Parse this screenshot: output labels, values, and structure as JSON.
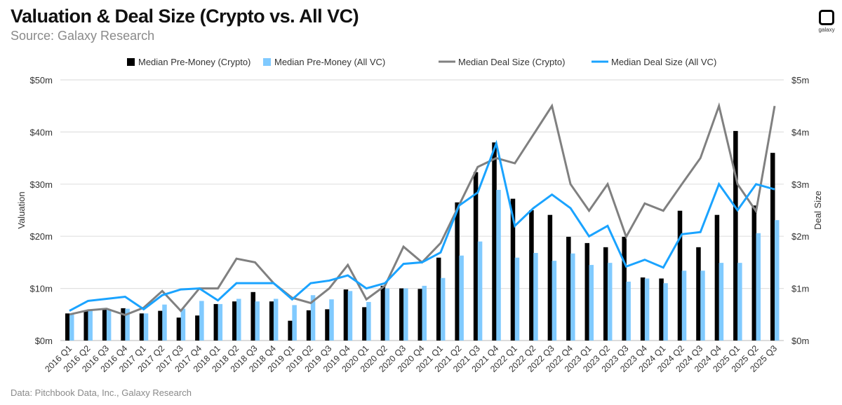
{
  "header": {
    "title": "Valuation & Deal Size (Crypto vs. All VC)",
    "subtitle": "Source: Galaxy Research",
    "logo_text": "galaxy"
  },
  "footer": {
    "text": "Data: Pitchbook Data, Inc., Galaxy Research"
  },
  "chart_data": {
    "type": "bar+line",
    "title": "Valuation & Deal Size (Crypto vs. All VC)",
    "ylabel": "Valuation",
    "y2label": "Deal Size",
    "ylim": [
      0,
      50
    ],
    "y2lim": [
      0,
      5
    ],
    "yticks": [
      "$0m",
      "$10m",
      "$20m",
      "$30m",
      "$40m",
      "$50m"
    ],
    "y2ticks": [
      "$0m",
      "$1m",
      "$2m",
      "$3m",
      "$4m",
      "$5m"
    ],
    "grid": true,
    "legend": "top",
    "categories": [
      "2016 Q1",
      "2016 Q2",
      "2016 Q3",
      "2016 Q4",
      "2017 Q1",
      "2017 Q2",
      "2017 Q3",
      "2017 Q4",
      "2018 Q1",
      "2018 Q2",
      "2018 Q3",
      "2018 Q4",
      "2019 Q1",
      "2019 Q2",
      "2019 Q3",
      "2019 Q4",
      "2020 Q1",
      "2020 Q2",
      "2020 Q3",
      "2020 Q4",
      "2021 Q1",
      "2021 Q2",
      "2021 Q3",
      "2021 Q4",
      "2022 Q1",
      "2022 Q2",
      "2022 Q3",
      "2022 Q4",
      "2023 Q1",
      "2023 Q2",
      "2023 Q3",
      "2023 Q4",
      "2024 Q1",
      "2024 Q2",
      "2024 Q3",
      "2024 Q4",
      "2025 Q1",
      "2025 Q2",
      "2025 Q3"
    ],
    "series": [
      {
        "name": "Median Pre-Money (Crypto)",
        "type": "bar",
        "axis": "left",
        "color": "#000000",
        "values": [
          5.2,
          5.7,
          6.1,
          6.2,
          5.2,
          5.7,
          4.4,
          4.8,
          7.0,
          7.5,
          9.3,
          7.5,
          3.8,
          5.8,
          6.0,
          9.8,
          6.4,
          10.5,
          10.0,
          9.9,
          15.9,
          26.5,
          32.3,
          38.0,
          27.2,
          25.0,
          24.1,
          19.9,
          18.7,
          17.9,
          19.9,
          12.1,
          11.9,
          24.9,
          17.9,
          24.1,
          40.2,
          25.9,
          36.0
        ]
      },
      {
        "name": "Median Pre-Money (All VC)",
        "type": "bar",
        "axis": "left",
        "color": "#80CAFF",
        "values": [
          5.0,
          5.9,
          6.0,
          6.1,
          5.2,
          6.9,
          6.1,
          7.6,
          7.0,
          8.0,
          7.5,
          8.0,
          6.8,
          8.7,
          7.9,
          9.5,
          7.4,
          10.0,
          10.0,
          10.5,
          12.0,
          16.3,
          19.0,
          28.9,
          15.9,
          16.8,
          15.3,
          16.7,
          14.5,
          14.9,
          11.3,
          11.9,
          11.0,
          13.4,
          13.4,
          14.9,
          14.9,
          20.6,
          23.1
        ]
      },
      {
        "name": "Median Deal Size (Crypto)",
        "type": "line",
        "axis": "right",
        "color": "#808080",
        "values": [
          0.5,
          0.58,
          0.61,
          0.49,
          0.63,
          0.95,
          0.57,
          1.0,
          1.0,
          1.57,
          1.5,
          1.1,
          0.82,
          0.72,
          1.0,
          1.45,
          0.79,
          1.05,
          1.8,
          1.5,
          1.87,
          2.6,
          3.33,
          3.5,
          3.4,
          3.95,
          4.5,
          3.0,
          2.49,
          3.0,
          1.99,
          2.63,
          2.49,
          3.0,
          3.5,
          4.5,
          3.0,
          2.48,
          4.5
        ]
      },
      {
        "name": "Median Deal Size (All VC)",
        "type": "line",
        "axis": "right",
        "color": "#1AA3FF",
        "values": [
          0.57,
          0.76,
          0.8,
          0.84,
          0.6,
          0.87,
          0.98,
          1.0,
          0.77,
          1.1,
          1.1,
          1.1,
          0.79,
          1.1,
          1.15,
          1.25,
          1.0,
          1.1,
          1.47,
          1.5,
          1.69,
          2.59,
          2.84,
          3.78,
          2.2,
          2.54,
          2.8,
          2.54,
          2.0,
          2.2,
          1.42,
          1.55,
          1.4,
          2.04,
          2.08,
          3.0,
          2.5,
          3.0,
          2.9
        ]
      }
    ]
  }
}
